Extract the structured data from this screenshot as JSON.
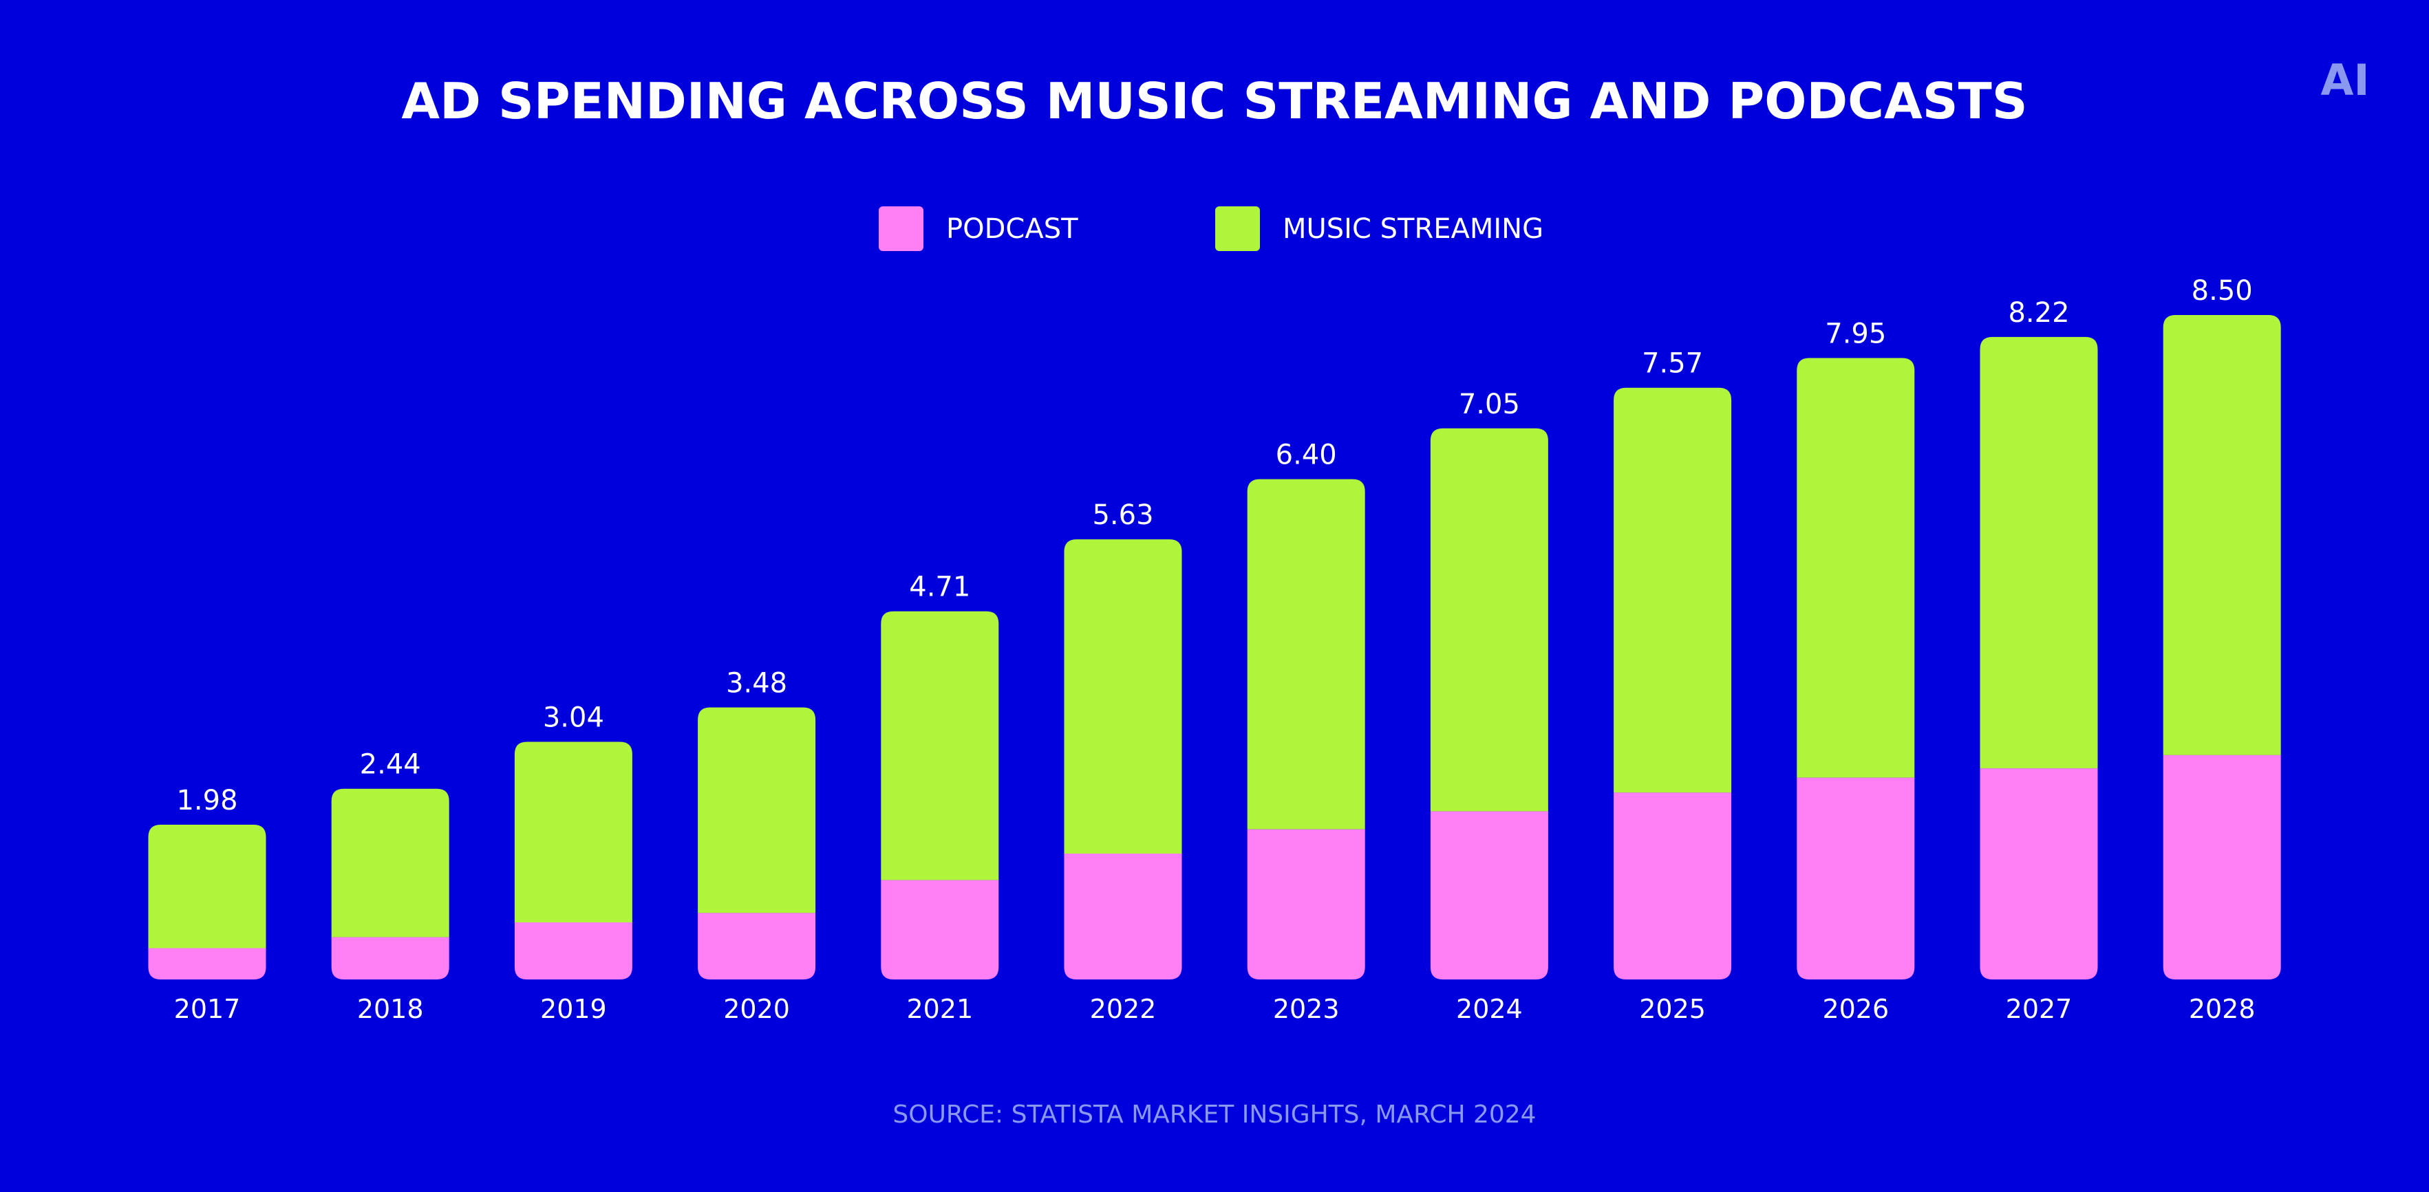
{
  "logo": {
    "text": "AI",
    "color": "#8a98f0"
  },
  "colors": {
    "background": "#0000dc",
    "podcast": "#ff7ff5",
    "music_streaming": "#b0f43c",
    "text": "#ffffff",
    "source": "#8a98f0"
  },
  "chart_data": {
    "type": "bar",
    "stacked": true,
    "title": "AD SPENDING ACROSS MUSIC STREAMING AND PODCASTS",
    "categories": [
      "2017",
      "2018",
      "2019",
      "2020",
      "2021",
      "2022",
      "2023",
      "2024",
      "2025",
      "2026",
      "2027",
      "2028"
    ],
    "series": [
      {
        "name": "PODCAST",
        "values": [
          0.4,
          0.54,
          0.73,
          0.85,
          1.27,
          1.61,
          1.92,
          2.15,
          2.39,
          2.58,
          2.7,
          2.87
        ]
      },
      {
        "name": "MUSIC STREAMING",
        "values": [
          1.58,
          1.9,
          2.31,
          2.63,
          3.44,
          4.02,
          4.48,
          4.9,
          5.18,
          5.37,
          5.52,
          5.63
        ]
      }
    ],
    "totals": [
      "1.98",
      "2.44",
      "3.04",
      "3.48",
      "4.71",
      "5.63",
      "6.40",
      "7.05",
      "7.57",
      "7.95",
      "8.22",
      "8.50"
    ],
    "xlabel": "",
    "ylabel": "",
    "ylim": [
      0,
      8.5
    ],
    "grid": false,
    "legend_position": "top-center"
  },
  "source": "SOURCE: STATISTA MARKET INSIGHTS, MARCH 2024"
}
